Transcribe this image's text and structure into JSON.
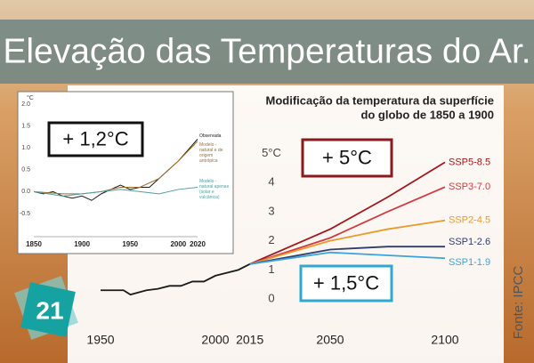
{
  "header": {
    "title": "Elevação das Temperaturas do Ar."
  },
  "badge": "21",
  "source": "Fonte: IPCC",
  "chart_data": [
    {
      "type": "line",
      "title": [
        "Modificação da temperatura da superfície",
        "do globo de 1850 a 1900"
      ],
      "xlim": [
        1950,
        2100
      ],
      "xticks": [
        1950,
        2000,
        2015,
        2050,
        2100
      ],
      "ylim": [
        -0.5,
        5.5
      ],
      "yticks": [
        0,
        1,
        2,
        3,
        4,
        {
          "value": 5,
          "label": "5°C"
        }
      ],
      "annotations": [
        "+ 5°C",
        "+ 1,5°C"
      ],
      "series": [
        {
          "name": null,
          "color": "#1a1a1a",
          "x": [
            1950,
            1955,
            1960,
            1963,
            1970,
            1975,
            1980,
            1985,
            1990,
            1995,
            2000,
            2005,
            2010,
            2015
          ],
          "values": [
            0.3,
            0.3,
            0.3,
            0.15,
            0.3,
            0.35,
            0.45,
            0.45,
            0.6,
            0.6,
            0.8,
            0.9,
            1.0,
            1.2
          ]
        },
        {
          "name": "SSP5-8.5",
          "color": "#a3161c",
          "x": [
            2015,
            2050,
            2075,
            2100
          ],
          "values": [
            1.2,
            2.4,
            3.5,
            4.7
          ]
        },
        {
          "name": "SSP3-7.0",
          "color": "#d23a3f",
          "x": [
            2015,
            2050,
            2075,
            2100
          ],
          "values": [
            1.2,
            2.1,
            3.0,
            3.85
          ]
        },
        {
          "name": "SSP2-4.5",
          "color": "#eb9a2a",
          "x": [
            2015,
            2050,
            2075,
            2100
          ],
          "values": [
            1.2,
            2.0,
            2.4,
            2.7
          ]
        },
        {
          "name": "SSP1-2.6",
          "color": "#2e3d6e",
          "x": [
            2015,
            2050,
            2075,
            2100
          ],
          "values": [
            1.2,
            1.7,
            1.8,
            1.8
          ]
        },
        {
          "name": "SSP1-1.9",
          "color": "#3aa3dc",
          "x": [
            2015,
            2050,
            2075,
            2100
          ],
          "values": [
            1.2,
            1.6,
            1.5,
            1.4
          ]
        }
      ]
    },
    {
      "type": "line",
      "ylabel": "°C",
      "xlim": [
        1850,
        2020
      ],
      "xticks": [
        1850,
        1900,
        1950,
        2000,
        2020
      ],
      "ylim": [
        -0.5,
        2
      ],
      "yticks": [
        -0.5,
        {
          "value": 0,
          "label": "0.0"
        },
        0.5,
        {
          "value": 1,
          "label": "1.0"
        },
        1.5,
        {
          "value": 2,
          "label": "2.0"
        }
      ],
      "annotations": [
        "+ 1,2°C"
      ],
      "series": [
        {
          "name": "Observada",
          "color": "#1a1a1a",
          "x": [
            1850,
            1860,
            1870,
            1880,
            1890,
            1900,
            1910,
            1920,
            1930,
            1940,
            1950,
            1960,
            1970,
            1980,
            1990,
            2000,
            2010,
            2020
          ],
          "values": [
            0.0,
            -0.05,
            0.0,
            -0.1,
            -0.15,
            -0.1,
            -0.2,
            -0.05,
            0.05,
            0.15,
            0.05,
            0.1,
            0.1,
            0.3,
            0.5,
            0.7,
            0.95,
            1.2
          ]
        },
        {
          "name": "Modelo - natural e de origem antrópica",
          "color": "#a0702e",
          "x": [
            1850,
            1880,
            1900,
            1920,
            1940,
            1960,
            1980,
            2000,
            2020
          ],
          "values": [
            0.0,
            -0.05,
            -0.05,
            0.0,
            0.1,
            0.1,
            0.3,
            0.7,
            1.15
          ]
        },
        {
          "name": "Modelo - natural apenas (solar e vulcânica)",
          "color": "#4f9f9f",
          "x": [
            1850,
            1880,
            1900,
            1920,
            1940,
            1960,
            1980,
            2000,
            2020
          ],
          "values": [
            0.0,
            -0.1,
            -0.05,
            0.0,
            0.05,
            0.0,
            -0.05,
            0.05,
            0.1
          ]
        }
      ]
    }
  ]
}
